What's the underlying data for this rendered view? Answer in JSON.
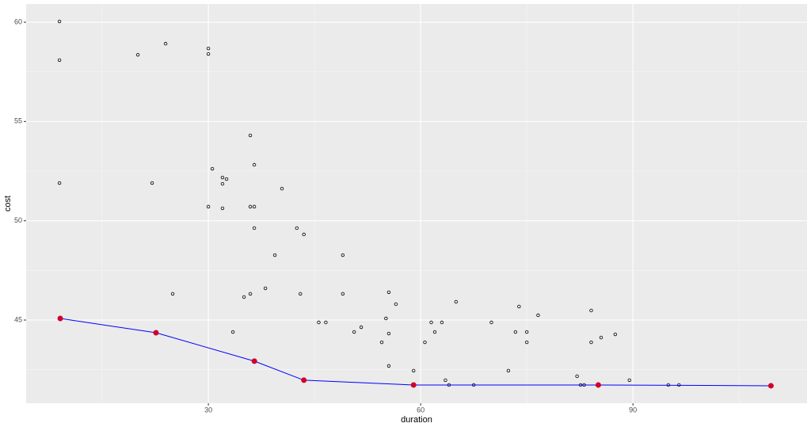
{
  "chart_data": {
    "type": "scatter",
    "xlabel": "duration",
    "ylabel": "cost",
    "xlim": [
      4.25,
      114.6
    ],
    "ylim": [
      40.81,
      60.92
    ],
    "xticks": [
      30,
      60,
      90
    ],
    "yticks": [
      45,
      50,
      55,
      60
    ],
    "grid": true,
    "panel_color": "#ebebeb",
    "series": [
      {
        "kind": "points",
        "color": "#000000",
        "x": [
          8.96,
          8.96,
          8.96,
          20.04,
          23.96,
          22.05,
          24.96,
          30.0,
          30.0,
          30.0,
          30.56,
          32.0,
          32.57,
          32.0,
          32.0,
          33.47,
          35.04,
          35.93,
          36.49,
          35.93,
          36.49,
          36.49,
          35.93,
          38.06,
          39.4,
          40.4,
          42.5,
          43.5,
          43.0,
          45.6,
          46.6,
          49.0,
          49.0,
          50.6,
          51.6,
          54.5,
          55.1,
          55.5,
          55.5,
          55.5,
          56.5,
          59.0,
          60.6,
          61.5,
          62.0,
          63.0,
          63.5,
          64.0,
          65.0,
          67.5,
          70.0,
          72.4,
          73.4,
          73.9,
          75.0,
          75.0,
          76.6,
          82.1,
          82.6,
          83.1,
          84.1,
          84.1,
          85.5,
          87.5,
          89.5,
          95.0,
          96.5
        ],
        "values": [
          60.04,
          58.09,
          51.9,
          58.36,
          58.92,
          51.9,
          46.32,
          58.68,
          58.4,
          50.71,
          52.62,
          52.18,
          52.1,
          51.86,
          50.63,
          44.4,
          46.16,
          54.3,
          52.82,
          50.71,
          50.71,
          49.63,
          46.32,
          46.6,
          48.27,
          51.62,
          49.63,
          49.31,
          46.32,
          44.88,
          44.88,
          48.27,
          46.32,
          44.4,
          44.64,
          43.88,
          45.08,
          46.4,
          44.32,
          42.69,
          45.8,
          42.45,
          43.88,
          44.88,
          44.4,
          44.88,
          41.97,
          41.73,
          45.92,
          41.73,
          44.88,
          42.45,
          44.4,
          45.68,
          44.4,
          43.88,
          45.24,
          42.17,
          41.73,
          41.73,
          45.48,
          43.88,
          44.12,
          44.28,
          41.97,
          41.73,
          41.73
        ]
      },
      {
        "kind": "line",
        "color": "#0000ff",
        "marker_color": "#d0002a",
        "x": [
          9.07,
          22.6,
          36.5,
          43.5,
          59.0,
          85.1,
          109.5
        ],
        "values": [
          45.08,
          44.36,
          42.93,
          41.97,
          41.73,
          41.73,
          41.69
        ]
      }
    ]
  }
}
